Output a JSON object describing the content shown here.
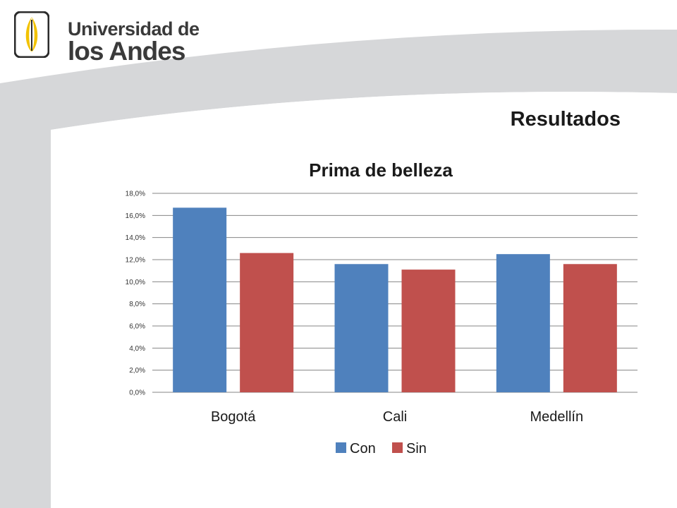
{
  "logo": {
    "line1": "Universidad de",
    "line2": "los Andes"
  },
  "slide_title": "Resultados",
  "colors": {
    "con": "#4F81BD",
    "sin": "#C0504D",
    "grid": "#868686",
    "band": "#d6d7d9"
  },
  "chart_data": {
    "type": "bar",
    "title": "Prima de belleza",
    "categories": [
      "Bogotá",
      "Cali",
      "Medellín"
    ],
    "series": [
      {
        "name": "Con",
        "values": [
          16.7,
          11.6,
          12.5
        ]
      },
      {
        "name": "Sin",
        "values": [
          12.6,
          11.1,
          11.6
        ]
      }
    ],
    "ylim": [
      0,
      18
    ],
    "ytick_step": 2,
    "ytick_format": "percent-comma-1",
    "xlabel": "",
    "ylabel": "",
    "grid": true,
    "legend": "bottom"
  }
}
